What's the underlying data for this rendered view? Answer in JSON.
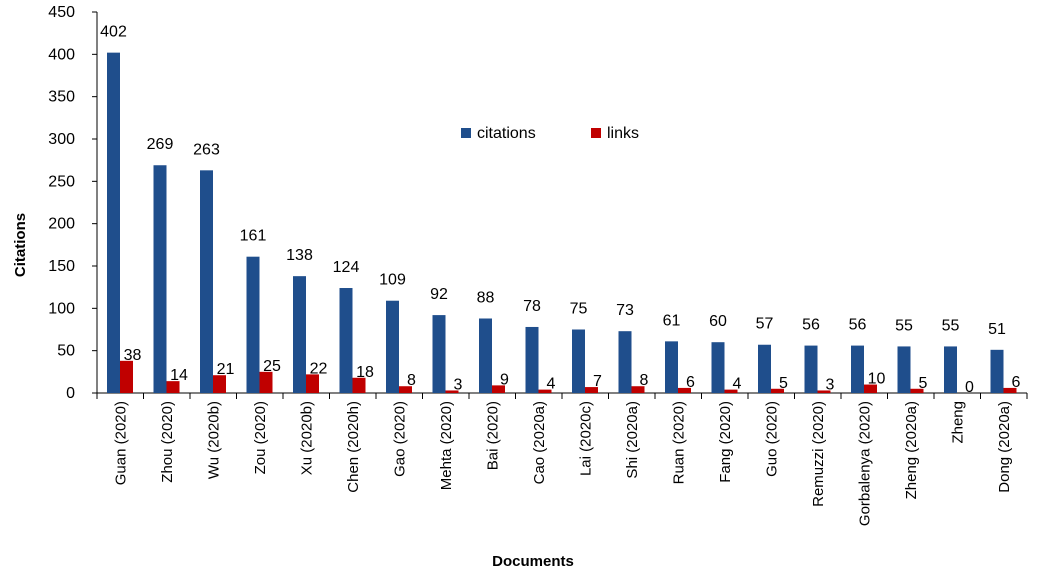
{
  "chart_data": {
    "type": "bar",
    "title": "",
    "xlabel": "Documents",
    "ylabel": "Citations",
    "ylim": [
      0,
      450
    ],
    "yticks": [
      0,
      50,
      100,
      150,
      200,
      250,
      300,
      350,
      400,
      450
    ],
    "grid": false,
    "legend_position": "center-right",
    "categories": [
      "Guan (2020)",
      "Zhou (2020)",
      "Wu (2020b)",
      "Zou (2020)",
      "Xu (2020b)",
      "Chen (2020h)",
      "Gao (2020)",
      "Mehta (2020)",
      "Bai (2020)",
      "Cao (2020a)",
      "Lai (2020c)",
      "Shi (2020a)",
      "Ruan (2020)",
      "Fang (2020)",
      "Guo (2020)",
      "Remuzzi (2020)",
      "Gorbalenya (2020)",
      "Zheng (2020a)",
      "Zheng",
      "Dong (2020a)"
    ],
    "series": [
      {
        "name": "citations",
        "color": "#1F4E8C",
        "values": [
          402,
          269,
          263,
          161,
          138,
          124,
          109,
          92,
          88,
          78,
          75,
          73,
          61,
          60,
          57,
          56,
          56,
          55,
          55,
          51
        ]
      },
      {
        "name": "links",
        "color": "#C00000",
        "values": [
          38,
          14,
          21,
          25,
          22,
          18,
          8,
          3,
          9,
          4,
          7,
          8,
          6,
          4,
          5,
          3,
          10,
          5,
          0,
          6
        ]
      }
    ]
  }
}
